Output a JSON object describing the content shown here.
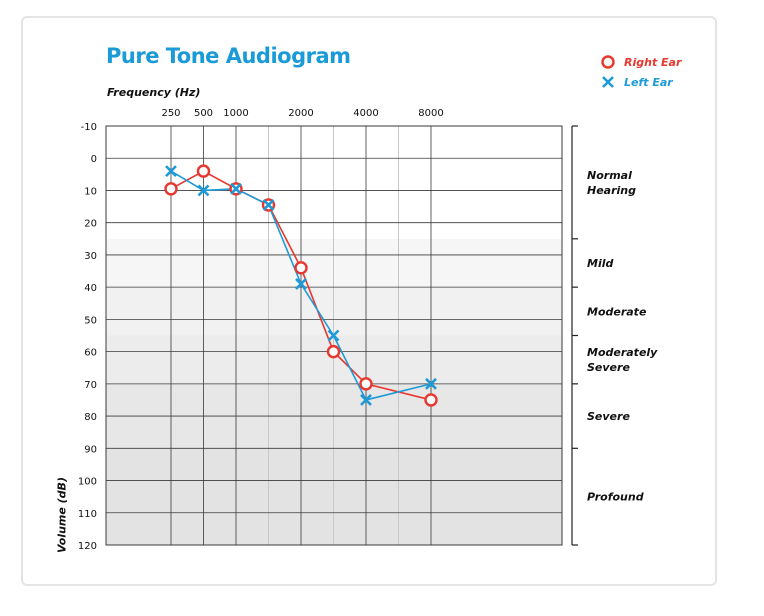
{
  "chart_data": {
    "type": "line",
    "title": "Pure Tone Audiogram",
    "xlabel": "Frequency (Hz)",
    "ylabel": "Volume (dB)",
    "x_categories": [
      "250",
      "500",
      "1000",
      "",
      "2000",
      "",
      "4000",
      "",
      "8000"
    ],
    "x_tick_labels": [
      "250",
      "500",
      "1000",
      "2000",
      "4000",
      "8000"
    ],
    "x_label_index": [
      0,
      1,
      2,
      4,
      6,
      8
    ],
    "y_ticks": [
      -10,
      0,
      10,
      20,
      30,
      40,
      50,
      60,
      70,
      80,
      90,
      100,
      110,
      120
    ],
    "ylim": [
      -10,
      120
    ],
    "y_inverted": true,
    "grid": true,
    "legend_position": "top-right",
    "series": [
      {
        "name": "Right Ear",
        "marker": "circle",
        "color": "#e8372e",
        "points": [
          [
            0,
            9.5
          ],
          [
            1,
            4
          ],
          [
            2,
            9.5
          ],
          [
            3,
            14.5
          ],
          [
            4,
            34
          ],
          [
            5,
            60
          ],
          [
            6,
            70
          ],
          [
            8,
            75
          ]
        ]
      },
      {
        "name": "Left Ear",
        "marker": "x",
        "color": "#1e9ad6",
        "points": [
          [
            0,
            4
          ],
          [
            1,
            10
          ],
          [
            2,
            9.5
          ],
          [
            3,
            14.5
          ],
          [
            4,
            39
          ],
          [
            5,
            55
          ],
          [
            6,
            75
          ],
          [
            8,
            70
          ]
        ]
      }
    ],
    "hearing_categories": [
      {
        "label": "Normal Hearing",
        "lines": [
          "Normal",
          "Hearing"
        ],
        "from": -10,
        "to": 25
      },
      {
        "label": "Mild",
        "lines": [
          "Mild"
        ],
        "from": 25,
        "to": 40
      },
      {
        "label": "Moderate",
        "lines": [
          "Moderate"
        ],
        "from": 40,
        "to": 55
      },
      {
        "label": "Moderately Severe",
        "lines": [
          "Moderately",
          "Severe"
        ],
        "from": 55,
        "to": 70
      },
      {
        "label": "Severe",
        "lines": [
          "Severe"
        ],
        "from": 70,
        "to": 90
      },
      {
        "label": "Profound",
        "lines": [
          "Profound"
        ],
        "from": 90,
        "to": 120
      }
    ],
    "band_shades": [
      {
        "from": -10,
        "to": 25,
        "color": "#ffffff"
      },
      {
        "from": 25,
        "to": 40,
        "color": "#f6f6f6"
      },
      {
        "from": 40,
        "to": 55,
        "color": "#f1f1f1"
      },
      {
        "from": 55,
        "to": 70,
        "color": "#ececec"
      },
      {
        "from": 70,
        "to": 90,
        "color": "#e7e7e7"
      },
      {
        "from": 90,
        "to": 120,
        "color": "#e3e3e3"
      }
    ]
  },
  "colors": {
    "title": "#1a9bd7",
    "right_ear": "#e8372e",
    "left_ear": "#1e9ad6",
    "grid_major": "#3a3a3a",
    "grid_minor": "#c8c8c8"
  },
  "legend": {
    "right_label": "Right Ear",
    "left_label": "Left Ear"
  }
}
